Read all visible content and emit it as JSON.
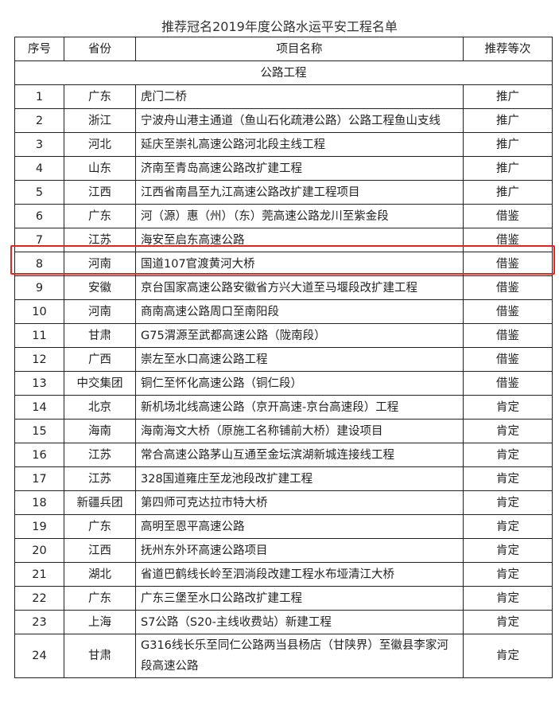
{
  "title": "推荐冠名2019年度公路水运平安工程名单",
  "headers": {
    "no": "序号",
    "province": "省份",
    "project": "项目名称",
    "level": "推荐等次"
  },
  "section": "公路工程",
  "highlight_color": "#e8231f",
  "highlighted_row": "7",
  "rows": [
    {
      "no": "1",
      "province": "广东",
      "project": "虎门二桥",
      "level": "推广"
    },
    {
      "no": "2",
      "province": "浙江",
      "project": "宁波舟山港主通道（鱼山石化疏港公路）公路工程鱼山支线",
      "level": "推广"
    },
    {
      "no": "3",
      "province": "河北",
      "project": "延庆至崇礼高速公路河北段主线工程",
      "level": "推广"
    },
    {
      "no": "4",
      "province": "山东",
      "project": "济南至青岛高速公路改扩建工程",
      "level": "推广"
    },
    {
      "no": "5",
      "province": "江西",
      "project": "江西省南昌至九江高速公路改扩建工程项目",
      "level": "推广"
    },
    {
      "no": "6",
      "province": "广东",
      "project": "河（源）惠（州）（东）莞高速公路龙川至紫金段",
      "level": "借鉴"
    },
    {
      "no": "7",
      "province": "江苏",
      "project": "海安至启东高速公路",
      "level": "借鉴"
    },
    {
      "no": "8",
      "province": "河南",
      "project": "国道107官渡黄河大桥",
      "level": "借鉴"
    },
    {
      "no": "9",
      "province": "安徽",
      "project": "京台国家高速公路安徽省方兴大道至马堰段改扩建工程",
      "level": "借鉴"
    },
    {
      "no": "10",
      "province": "河南",
      "project": "商南高速公路周口至南阳段",
      "level": "借鉴"
    },
    {
      "no": "11",
      "province": "甘肃",
      "project": "G75渭源至武都高速公路（陇南段）",
      "level": "借鉴"
    },
    {
      "no": "12",
      "province": "广西",
      "project": "崇左至水口高速公路工程",
      "level": "借鉴"
    },
    {
      "no": "13",
      "province": "中交集团",
      "project": "铜仁至怀化高速公路（铜仁段）",
      "level": "借鉴"
    },
    {
      "no": "14",
      "province": "北京",
      "project": "新机场北线高速公路（京开高速-京台高速段）工程",
      "level": "肯定"
    },
    {
      "no": "15",
      "province": "海南",
      "project": "海南海文大桥（原施工名称铺前大桥）建设项目",
      "level": "肯定"
    },
    {
      "no": "16",
      "province": "江苏",
      "project": "常合高速公路茅山互通至金坛滨湖新城连接线工程",
      "level": "肯定"
    },
    {
      "no": "17",
      "province": "江苏",
      "project": "328国道雍庄至龙池段改扩建工程",
      "level": "肯定"
    },
    {
      "no": "18",
      "province": "新疆兵团",
      "project": "第四师可克达拉市特大桥",
      "level": "肯定"
    },
    {
      "no": "19",
      "province": "广东",
      "project": "高明至恩平高速公路",
      "level": "肯定"
    },
    {
      "no": "20",
      "province": "江西",
      "project": "抚州东外环高速公路项目",
      "level": "肯定"
    },
    {
      "no": "21",
      "province": "湖北",
      "project": "省道巴鹤线长岭至泗淌段改建工程水布垭清江大桥",
      "level": "肯定"
    },
    {
      "no": "22",
      "province": "广东",
      "project": "广东三堡至水口公路改扩建工程",
      "level": "肯定"
    },
    {
      "no": "23",
      "province": "上海",
      "project": "S7公路（S20-主线收费站）新建工程",
      "level": "肯定"
    },
    {
      "no": "24",
      "province": "甘肃",
      "project": "G316线长乐至同仁公路两当县杨店（甘陕界）至徽县李家河段高速公路",
      "level": "肯定"
    }
  ]
}
